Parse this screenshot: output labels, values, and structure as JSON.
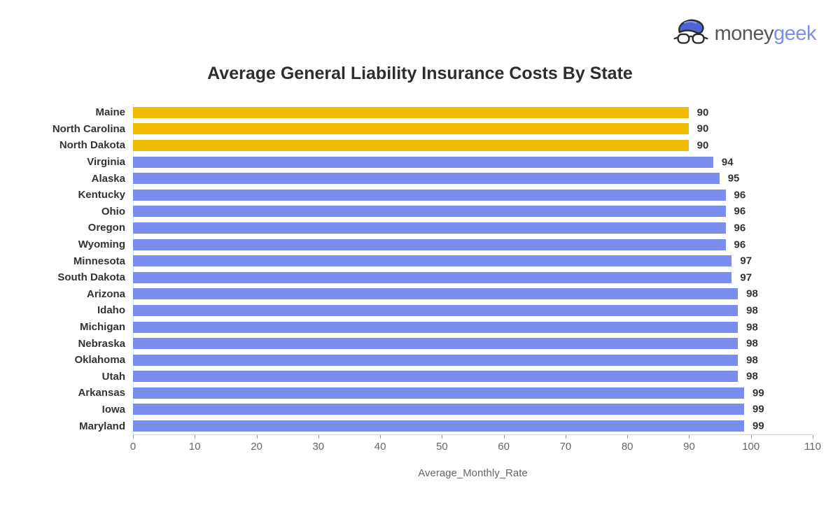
{
  "logo": {
    "text_primary": "money",
    "text_secondary": "geek",
    "icon": "moneygeek-mascot-icon",
    "primary_color": "#55565A",
    "secondary_color": "#7B8FE8",
    "mascot_hair_color": "#4F63D2",
    "mascot_outline_color": "#2A2A2A"
  },
  "chart_data": {
    "type": "bar",
    "orientation": "horizontal",
    "title": "Average General Liability Insurance Costs By State",
    "xlabel": "Average_Monthly_Rate",
    "ylabel": "",
    "xlim": [
      0,
      110
    ],
    "x_ticks": [
      0,
      10,
      20,
      30,
      40,
      50,
      60,
      70,
      80,
      90,
      100,
      110
    ],
    "grid": false,
    "legend": "none",
    "categories": [
      "Maine",
      "North Carolina",
      "North Dakota",
      "Virginia",
      "Alaska",
      "Kentucky",
      "Ohio",
      "Oregon",
      "Wyoming",
      "Minnesota",
      "South Dakota",
      "Arizona",
      "Idaho",
      "Michigan",
      "Nebraska",
      "Oklahoma",
      "Utah",
      "Arkansas",
      "Iowa",
      "Maryland"
    ],
    "values": [
      90,
      90,
      90,
      94,
      95,
      96,
      96,
      96,
      96,
      97,
      97,
      98,
      98,
      98,
      98,
      98,
      98,
      99,
      99,
      99
    ],
    "highlighted_categories": [
      "Maine",
      "North Carolina",
      "North Dakota"
    ],
    "bar_color_default": "#7A8CEE",
    "bar_color_highlight": "#F1BC00",
    "value_labels_shown": true,
    "axis_line_color": "#C9CFF2",
    "tick_label_color": "#666666",
    "category_label_color": "#333333"
  }
}
